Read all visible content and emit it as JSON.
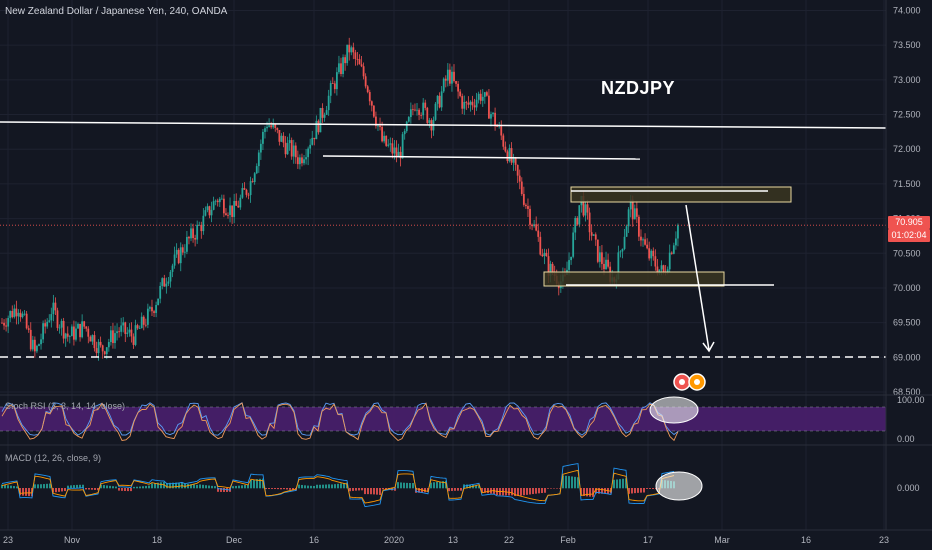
{
  "header": {
    "title": "New Zealand Dollar / Japanese Yen, 240, OANDA",
    "symbol_annotation": "NZDJPY",
    "last_price": "70.905",
    "countdown": "01:02:04"
  },
  "indicators": {
    "stoch_label": "Stoch RSI (3, 3, 14, 14, close)",
    "macd_label": "MACD (12, 26, close, 9)"
  },
  "colors": {
    "background": "#131722",
    "up": "#26a69a",
    "down": "#ef5350",
    "drawing": "#ffffff",
    "zone_fill": "#3a3520",
    "zone_border": "#e8d9a0",
    "stoch_band": "#4a1f6e",
    "stoch_k": "#5b9cf6",
    "stoch_d": "#ef9a5a",
    "macd_line": "#2196f3",
    "signal_line": "#ff9800",
    "grid": "#1e2230"
  },
  "chart_data": {
    "type": "candlestick",
    "title": "New Zealand Dollar / Japanese Yen, 240, OANDA",
    "timeframe": "240",
    "ylim": [
      68.4,
      74.05
    ],
    "y_ticks": [
      "74.000",
      "73.500",
      "73.000",
      "72.500",
      "72.000",
      "71.500",
      "71.000",
      "70.500",
      "70.000",
      "69.500",
      "69.000",
      "68.500"
    ],
    "x_ticks": [
      "23",
      "Nov",
      "18",
      "Dec",
      "16",
      "2020",
      "13",
      "22",
      "Feb",
      "17",
      "Mar",
      "16",
      "23"
    ],
    "price_path": [
      [
        0,
        69.5
      ],
      [
        1,
        69.75
      ],
      [
        2,
        69.05
      ],
      [
        3,
        69.7
      ],
      [
        4,
        69.3
      ],
      [
        5,
        69.45
      ],
      [
        6,
        69.1
      ],
      [
        7,
        69.4
      ],
      [
        8,
        69.3
      ],
      [
        9,
        69.65
      ],
      [
        10,
        70.2
      ],
      [
        11,
        70.6
      ],
      [
        12,
        70.9
      ],
      [
        13,
        71.3
      ],
      [
        14,
        71.1
      ],
      [
        15,
        71.5
      ],
      [
        16,
        72.4
      ],
      [
        17,
        72.1
      ],
      [
        18,
        71.85
      ],
      [
        19,
        72.3
      ],
      [
        20,
        72.9
      ],
      [
        21,
        73.45
      ],
      [
        22,
        73.0
      ],
      [
        23,
        72.1
      ],
      [
        24,
        71.9
      ],
      [
        25,
        72.7
      ],
      [
        26,
        72.4
      ],
      [
        27,
        73.1
      ],
      [
        28,
        72.6
      ],
      [
        29,
        72.8
      ],
      [
        30,
        72.3
      ],
      [
        31,
        71.7
      ],
      [
        32,
        71.0
      ],
      [
        33,
        70.3
      ],
      [
        34,
        70.05
      ],
      [
        35,
        71.3
      ],
      [
        36,
        70.5
      ],
      [
        37,
        70.1
      ],
      [
        38,
        71.2
      ],
      [
        39,
        70.5
      ],
      [
        40,
        70.2
      ],
      [
        41,
        71.0
      ]
    ],
    "drawings": {
      "horizontal_lines": [
        {
          "y_start": 72.32,
          "y_end": 72.3,
          "style": "solid"
        },
        {
          "y_start": 71.8,
          "y_end": 71.78,
          "style": "solid",
          "partial": true
        },
        {
          "y_start": 70.0,
          "y_end": 70.0,
          "style": "solid",
          "partial": true
        },
        {
          "y_start": 68.95,
          "y_end": 68.95,
          "style": "dashed"
        }
      ],
      "zones": [
        {
          "y_top": 71.4,
          "y_bottom": 71.2
        },
        {
          "y_top": 70.18,
          "y_bottom": 70.0
        }
      ],
      "projection_arrow": {
        "from": 71.3,
        "to": 68.95
      }
    },
    "stoch_rsi": {
      "params": "3, 3, 14, 14, close",
      "ylim": [
        0,
        100
      ],
      "y_ticks": [
        "100.00",
        "0.00"
      ]
    },
    "macd": {
      "params": "12, 26, close, 9",
      "y_ticks": [
        "0.000"
      ]
    }
  }
}
